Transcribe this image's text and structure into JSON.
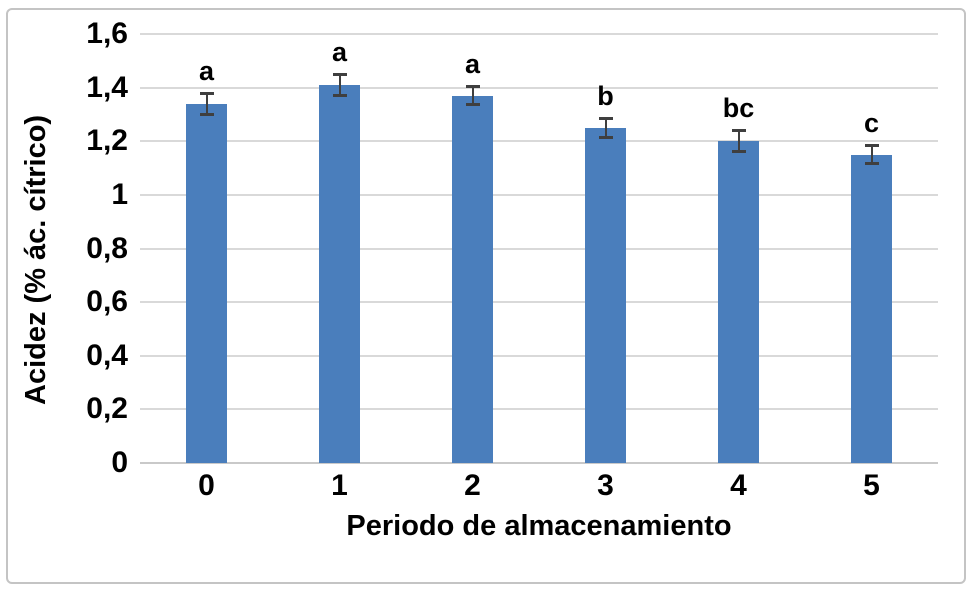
{
  "chart_data": {
    "type": "bar",
    "title": "",
    "xlabel": "Periodo de almacenamiento",
    "ylabel": "Acidez (% ác. cítrico)",
    "categories": [
      "0",
      "1",
      "2",
      "3",
      "4",
      "5"
    ],
    "values": [
      1.34,
      1.41,
      1.37,
      1.25,
      1.2,
      1.15
    ],
    "error_bars": [
      0.045,
      0.045,
      0.04,
      0.04,
      0.045,
      0.04
    ],
    "significance_letters": [
      "a",
      "a",
      "a",
      "b",
      "bc",
      "c"
    ],
    "ylim": [
      0,
      1.6
    ],
    "ytick_step": 0.2,
    "ytick_labels": [
      "0",
      "0,2",
      "0,4",
      "0,6",
      "0,8",
      "1",
      "1,2",
      "1,4",
      "1,6"
    ],
    "grid": "horizontal",
    "legend": "none",
    "bar_color": "#4a7ebc",
    "error_color": "#3f3f3f",
    "grid_color": "#d9d9d9",
    "frame_border_color": "#c4c4c4",
    "text_color": "#000000",
    "background": "#ffffff"
  }
}
